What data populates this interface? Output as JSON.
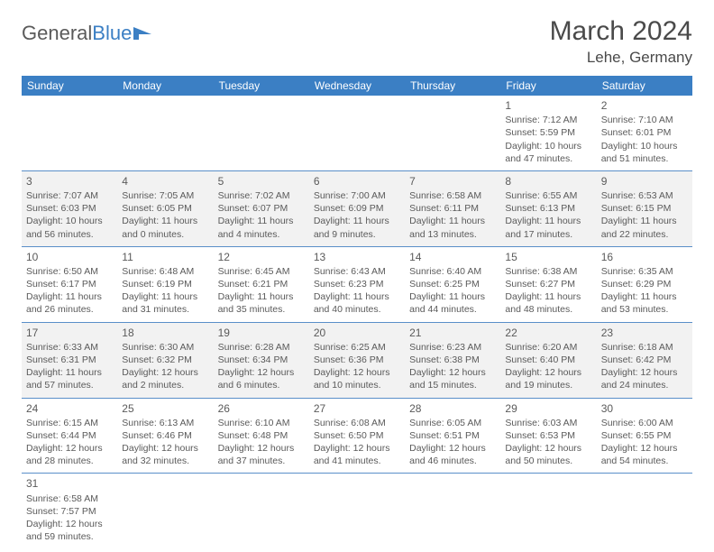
{
  "logo": {
    "text1": "General",
    "text2": "Blue"
  },
  "title": "March 2024",
  "location": "Lehe, Germany",
  "colors": {
    "header_bg": "#3b7fc4",
    "header_text": "#ffffff",
    "row_alt_bg": "#f2f2f2",
    "row_bg": "#ffffff",
    "border": "#5a8fc9",
    "text": "#5a5a5a"
  },
  "daynames": [
    "Sunday",
    "Monday",
    "Tuesday",
    "Wednesday",
    "Thursday",
    "Friday",
    "Saturday"
  ],
  "weeks": [
    [
      null,
      null,
      null,
      null,
      null,
      {
        "n": "1",
        "sr": "Sunrise: 7:12 AM",
        "ss": "Sunset: 5:59 PM",
        "dl1": "Daylight: 10 hours",
        "dl2": "and 47 minutes."
      },
      {
        "n": "2",
        "sr": "Sunrise: 7:10 AM",
        "ss": "Sunset: 6:01 PM",
        "dl1": "Daylight: 10 hours",
        "dl2": "and 51 minutes."
      }
    ],
    [
      {
        "n": "3",
        "sr": "Sunrise: 7:07 AM",
        "ss": "Sunset: 6:03 PM",
        "dl1": "Daylight: 10 hours",
        "dl2": "and 56 minutes."
      },
      {
        "n": "4",
        "sr": "Sunrise: 7:05 AM",
        "ss": "Sunset: 6:05 PM",
        "dl1": "Daylight: 11 hours",
        "dl2": "and 0 minutes."
      },
      {
        "n": "5",
        "sr": "Sunrise: 7:02 AM",
        "ss": "Sunset: 6:07 PM",
        "dl1": "Daylight: 11 hours",
        "dl2": "and 4 minutes."
      },
      {
        "n": "6",
        "sr": "Sunrise: 7:00 AM",
        "ss": "Sunset: 6:09 PM",
        "dl1": "Daylight: 11 hours",
        "dl2": "and 9 minutes."
      },
      {
        "n": "7",
        "sr": "Sunrise: 6:58 AM",
        "ss": "Sunset: 6:11 PM",
        "dl1": "Daylight: 11 hours",
        "dl2": "and 13 minutes."
      },
      {
        "n": "8",
        "sr": "Sunrise: 6:55 AM",
        "ss": "Sunset: 6:13 PM",
        "dl1": "Daylight: 11 hours",
        "dl2": "and 17 minutes."
      },
      {
        "n": "9",
        "sr": "Sunrise: 6:53 AM",
        "ss": "Sunset: 6:15 PM",
        "dl1": "Daylight: 11 hours",
        "dl2": "and 22 minutes."
      }
    ],
    [
      {
        "n": "10",
        "sr": "Sunrise: 6:50 AM",
        "ss": "Sunset: 6:17 PM",
        "dl1": "Daylight: 11 hours",
        "dl2": "and 26 minutes."
      },
      {
        "n": "11",
        "sr": "Sunrise: 6:48 AM",
        "ss": "Sunset: 6:19 PM",
        "dl1": "Daylight: 11 hours",
        "dl2": "and 31 minutes."
      },
      {
        "n": "12",
        "sr": "Sunrise: 6:45 AM",
        "ss": "Sunset: 6:21 PM",
        "dl1": "Daylight: 11 hours",
        "dl2": "and 35 minutes."
      },
      {
        "n": "13",
        "sr": "Sunrise: 6:43 AM",
        "ss": "Sunset: 6:23 PM",
        "dl1": "Daylight: 11 hours",
        "dl2": "and 40 minutes."
      },
      {
        "n": "14",
        "sr": "Sunrise: 6:40 AM",
        "ss": "Sunset: 6:25 PM",
        "dl1": "Daylight: 11 hours",
        "dl2": "and 44 minutes."
      },
      {
        "n": "15",
        "sr": "Sunrise: 6:38 AM",
        "ss": "Sunset: 6:27 PM",
        "dl1": "Daylight: 11 hours",
        "dl2": "and 48 minutes."
      },
      {
        "n": "16",
        "sr": "Sunrise: 6:35 AM",
        "ss": "Sunset: 6:29 PM",
        "dl1": "Daylight: 11 hours",
        "dl2": "and 53 minutes."
      }
    ],
    [
      {
        "n": "17",
        "sr": "Sunrise: 6:33 AM",
        "ss": "Sunset: 6:31 PM",
        "dl1": "Daylight: 11 hours",
        "dl2": "and 57 minutes."
      },
      {
        "n": "18",
        "sr": "Sunrise: 6:30 AM",
        "ss": "Sunset: 6:32 PM",
        "dl1": "Daylight: 12 hours",
        "dl2": "and 2 minutes."
      },
      {
        "n": "19",
        "sr": "Sunrise: 6:28 AM",
        "ss": "Sunset: 6:34 PM",
        "dl1": "Daylight: 12 hours",
        "dl2": "and 6 minutes."
      },
      {
        "n": "20",
        "sr": "Sunrise: 6:25 AM",
        "ss": "Sunset: 6:36 PM",
        "dl1": "Daylight: 12 hours",
        "dl2": "and 10 minutes."
      },
      {
        "n": "21",
        "sr": "Sunrise: 6:23 AM",
        "ss": "Sunset: 6:38 PM",
        "dl1": "Daylight: 12 hours",
        "dl2": "and 15 minutes."
      },
      {
        "n": "22",
        "sr": "Sunrise: 6:20 AM",
        "ss": "Sunset: 6:40 PM",
        "dl1": "Daylight: 12 hours",
        "dl2": "and 19 minutes."
      },
      {
        "n": "23",
        "sr": "Sunrise: 6:18 AM",
        "ss": "Sunset: 6:42 PM",
        "dl1": "Daylight: 12 hours",
        "dl2": "and 24 minutes."
      }
    ],
    [
      {
        "n": "24",
        "sr": "Sunrise: 6:15 AM",
        "ss": "Sunset: 6:44 PM",
        "dl1": "Daylight: 12 hours",
        "dl2": "and 28 minutes."
      },
      {
        "n": "25",
        "sr": "Sunrise: 6:13 AM",
        "ss": "Sunset: 6:46 PM",
        "dl1": "Daylight: 12 hours",
        "dl2": "and 32 minutes."
      },
      {
        "n": "26",
        "sr": "Sunrise: 6:10 AM",
        "ss": "Sunset: 6:48 PM",
        "dl1": "Daylight: 12 hours",
        "dl2": "and 37 minutes."
      },
      {
        "n": "27",
        "sr": "Sunrise: 6:08 AM",
        "ss": "Sunset: 6:50 PM",
        "dl1": "Daylight: 12 hours",
        "dl2": "and 41 minutes."
      },
      {
        "n": "28",
        "sr": "Sunrise: 6:05 AM",
        "ss": "Sunset: 6:51 PM",
        "dl1": "Daylight: 12 hours",
        "dl2": "and 46 minutes."
      },
      {
        "n": "29",
        "sr": "Sunrise: 6:03 AM",
        "ss": "Sunset: 6:53 PM",
        "dl1": "Daylight: 12 hours",
        "dl2": "and 50 minutes."
      },
      {
        "n": "30",
        "sr": "Sunrise: 6:00 AM",
        "ss": "Sunset: 6:55 PM",
        "dl1": "Daylight: 12 hours",
        "dl2": "and 54 minutes."
      }
    ],
    [
      {
        "n": "31",
        "sr": "Sunrise: 6:58 AM",
        "ss": "Sunset: 7:57 PM",
        "dl1": "Daylight: 12 hours",
        "dl2": "and 59 minutes."
      },
      null,
      null,
      null,
      null,
      null,
      null
    ]
  ]
}
